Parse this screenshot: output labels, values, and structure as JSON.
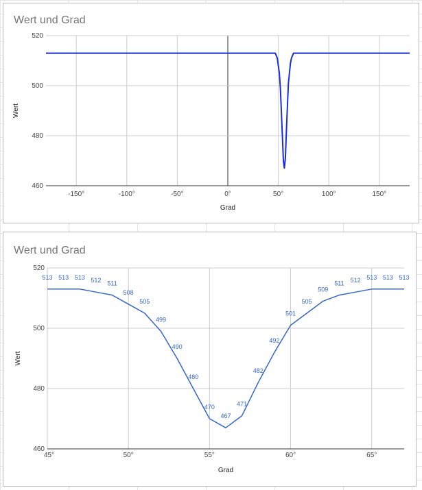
{
  "chart_data": [
    {
      "type": "line",
      "title": "Wert und Grad",
      "xlabel": "Grad",
      "ylabel": "Wert",
      "xlim": [
        -180,
        180
      ],
      "ylim": [
        460,
        520
      ],
      "x_ticks": [
        -150,
        -100,
        -50,
        0,
        50,
        100,
        150
      ],
      "x_tick_labels": [
        "-150°",
        "-100°",
        "-50°",
        "0°",
        "50°",
        "100°",
        "150°"
      ],
      "y_ticks": [
        460,
        480,
        500,
        520
      ],
      "y_tick_labels": [
        "460",
        "480",
        "500",
        "520"
      ],
      "grid": true,
      "legend": "none",
      "color": "#1a2be0",
      "series": [
        {
          "x": [
            -180,
            47,
            49,
            50,
            51,
            52,
            53,
            54,
            55,
            56,
            57,
            58,
            59,
            60,
            61,
            62,
            63,
            65,
            180
          ],
          "y": [
            513,
            513,
            511,
            508,
            505,
            499,
            490,
            480,
            470,
            467,
            471,
            482,
            492,
            501,
            505,
            509,
            511,
            513,
            513
          ]
        }
      ]
    },
    {
      "type": "line",
      "title": "Wert und Grad",
      "xlabel": "Grad",
      "ylabel": "Wert",
      "xlim": [
        45,
        67
      ],
      "ylim": [
        460,
        520
      ],
      "x_ticks": [
        45,
        50,
        55,
        60,
        65
      ],
      "x_tick_labels": [
        "45°",
        "50°",
        "55°",
        "60°",
        "65°"
      ],
      "y_ticks": [
        460,
        480,
        500,
        520
      ],
      "y_tick_labels": [
        "460",
        "480",
        "500",
        "520"
      ],
      "grid": true,
      "legend": "none",
      "color": "#3366cc",
      "series": [
        {
          "x": [
            45,
            46,
            47,
            48,
            49,
            50,
            51,
            52,
            53,
            54,
            55,
            56,
            57,
            58,
            59,
            60,
            61,
            62,
            63,
            64,
            65,
            66,
            67
          ],
          "y": [
            513,
            513,
            513,
            512,
            511,
            508,
            505,
            499,
            490,
            480,
            470,
            467,
            471,
            482,
            492,
            501,
            505,
            509,
            511,
            512,
            513,
            513,
            513
          ],
          "labels": [
            "513",
            "513",
            "513",
            "512",
            "511",
            "508",
            "505",
            "499",
            "490",
            "480",
            "470",
            "467",
            "471",
            "482",
            "492",
            "501",
            "505",
            "509",
            "511",
            "512",
            "513",
            "513",
            "513"
          ]
        }
      ]
    }
  ]
}
